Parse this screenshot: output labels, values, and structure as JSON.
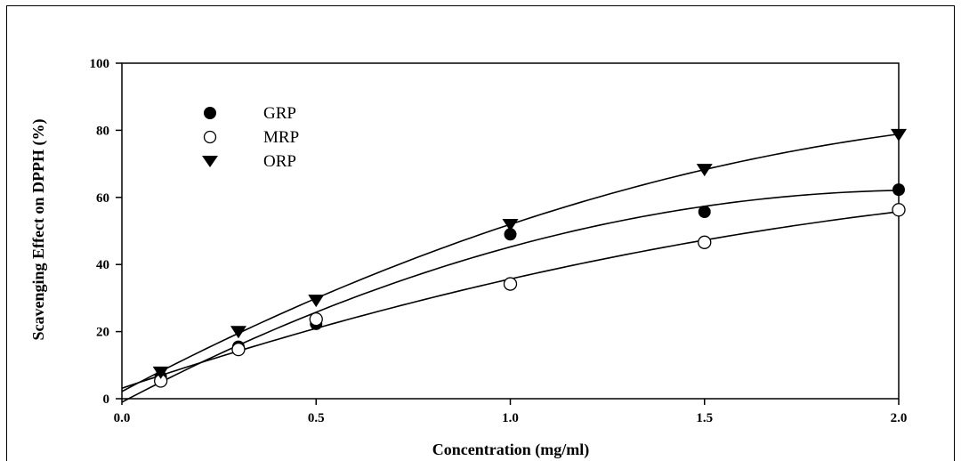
{
  "chart_data": {
    "type": "scatter",
    "title": "",
    "xlabel": "Concentration (mg/ml)",
    "ylabel": "Scavenging Effect on DPPH (%)",
    "xlim": [
      0,
      2.0
    ],
    "ylim": [
      0,
      100
    ],
    "x_ticks": [
      "0.0",
      "0.5",
      "1.0",
      "1.5",
      "2.0"
    ],
    "y_ticks": [
      "0",
      "20",
      "40",
      "60",
      "80",
      "100"
    ],
    "grid": false,
    "legend_position": "top-left",
    "fitted_curves": true,
    "series": [
      {
        "name": "GRP",
        "marker": "filled-circle",
        "points": [
          [
            0.1,
            6.5
          ],
          [
            0.3,
            15.5
          ],
          [
            0.5,
            22.3
          ],
          [
            1.0,
            49.0
          ],
          [
            1.5,
            55.7
          ],
          [
            2.0,
            62.3
          ]
        ]
      },
      {
        "name": "MRP",
        "marker": "open-circle",
        "points": [
          [
            0.1,
            5.3
          ],
          [
            0.3,
            14.7
          ],
          [
            0.5,
            23.7
          ],
          [
            1.0,
            34.2
          ],
          [
            1.5,
            46.6
          ],
          [
            2.0,
            56.3
          ]
        ]
      },
      {
        "name": "ORP",
        "marker": "filled-triangle-down",
        "points": [
          [
            0.1,
            8.0
          ],
          [
            0.3,
            20.1
          ],
          [
            0.5,
            29.4
          ],
          [
            1.0,
            52.0
          ],
          [
            1.5,
            68.4
          ],
          [
            2.0,
            78.8
          ]
        ]
      }
    ]
  }
}
